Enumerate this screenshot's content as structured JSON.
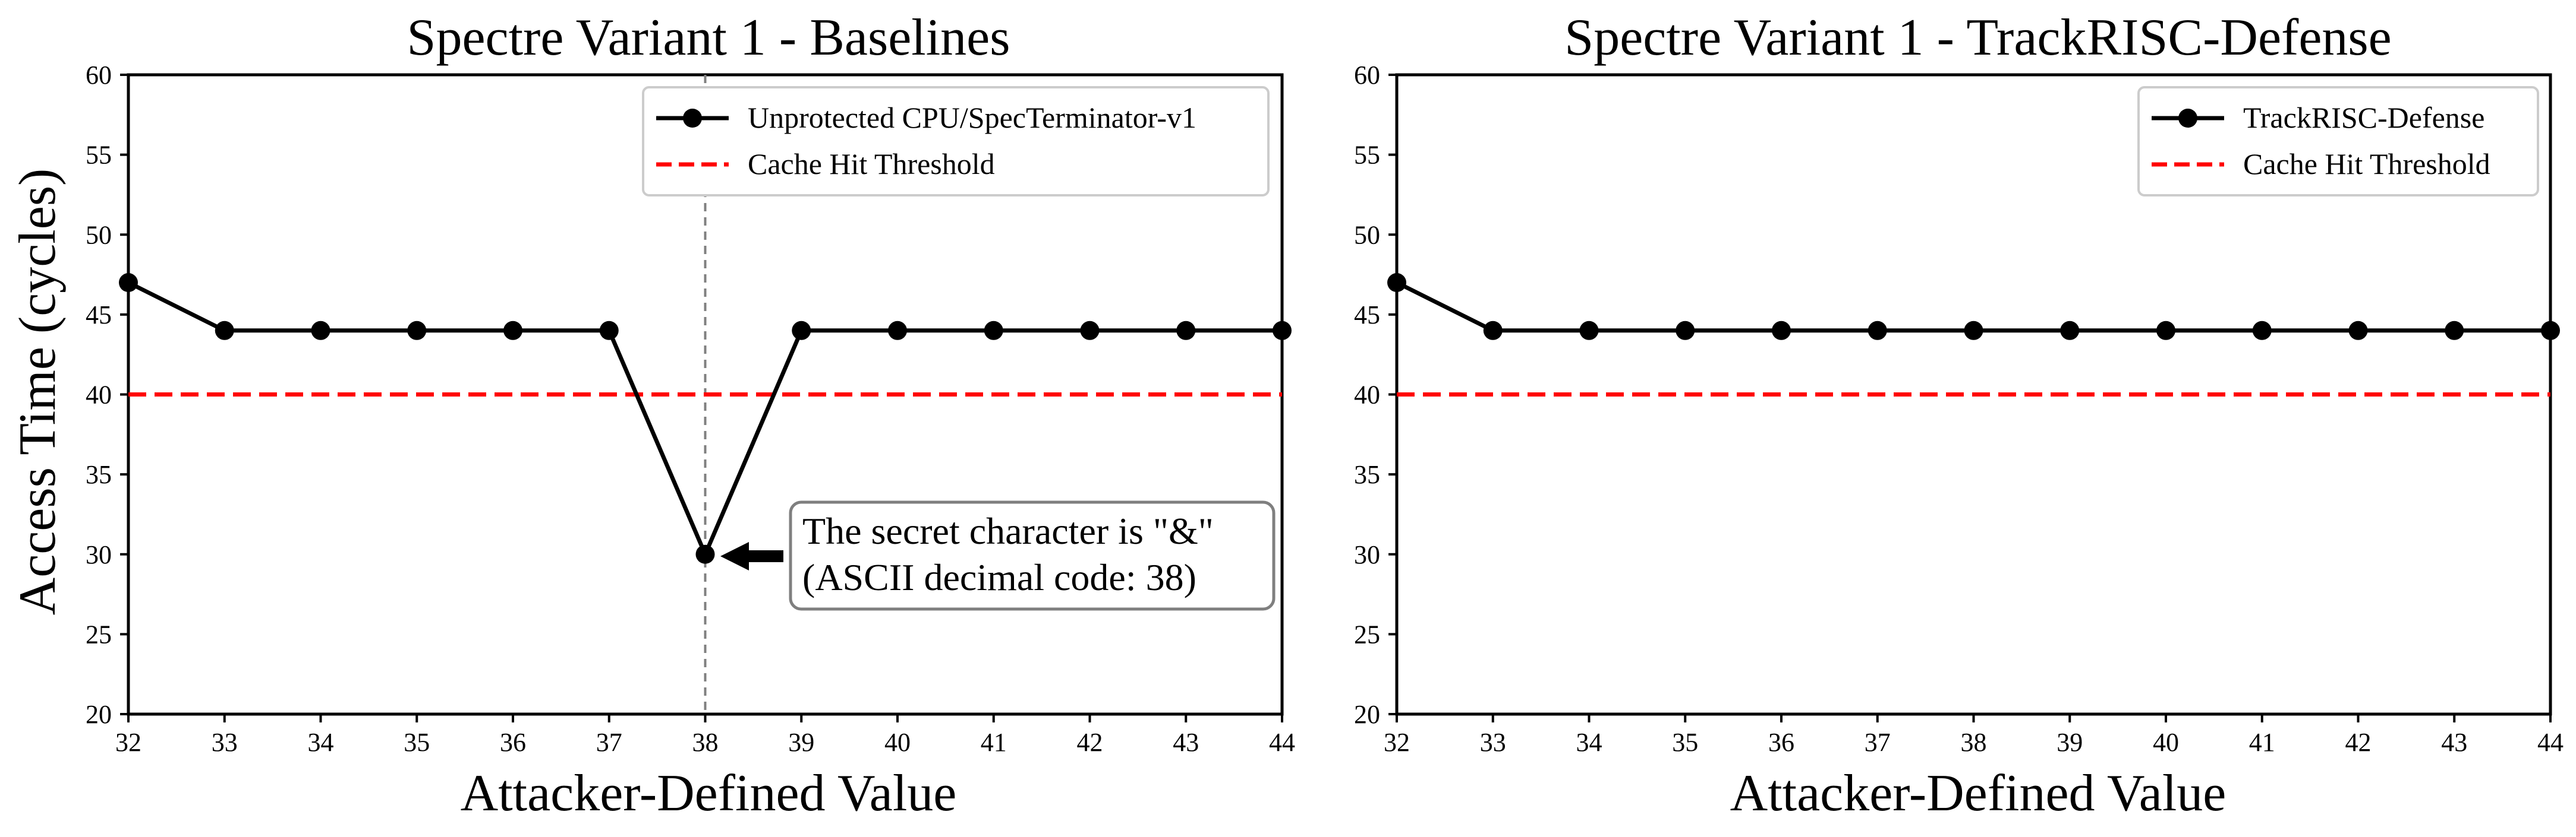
{
  "chart_data": [
    {
      "type": "line",
      "title": "Spectre Variant 1 - Baselines",
      "xlabel": "Attacker-Defined Value",
      "ylabel": "Access Time (cycles)",
      "xlim": [
        32,
        44
      ],
      "ylim": [
        20,
        60
      ],
      "x_ticks": [
        32,
        33,
        34,
        35,
        36,
        37,
        38,
        39,
        40,
        41,
        42,
        43,
        44
      ],
      "y_ticks": [
        20,
        25,
        30,
        35,
        40,
        45,
        50,
        55,
        60
      ],
      "grid": false,
      "legend_position": "top-right",
      "series": [
        {
          "name": "Unprotected CPU/SpecTerminator-v1",
          "color": "#000000",
          "marker": "circle",
          "x": [
            32,
            33,
            34,
            35,
            36,
            37,
            38,
            39,
            40,
            41,
            42,
            43,
            44
          ],
          "y": [
            47,
            44,
            44,
            44,
            44,
            44,
            30,
            44,
            44,
            44,
            44,
            44,
            44
          ]
        }
      ],
      "threshold": {
        "name": "Cache Hit Threshold",
        "y": 40,
        "color": "#ff0000",
        "style": "dashed"
      },
      "vline": {
        "x": 38,
        "color": "#808080",
        "style": "dashed"
      },
      "annotation": {
        "lines": [
          "The secret character is \"&\"",
          "(ASCII decimal code: 38)"
        ],
        "point": [
          38,
          30
        ]
      }
    },
    {
      "type": "line",
      "title": "Spectre Variant 1 - TrackRISC-Defense",
      "xlabel": "Attacker-Defined Value",
      "ylabel": "",
      "xlim": [
        32,
        44
      ],
      "ylim": [
        20,
        60
      ],
      "x_ticks": [
        32,
        33,
        34,
        35,
        36,
        37,
        38,
        39,
        40,
        41,
        42,
        43,
        44
      ],
      "y_ticks": [
        20,
        25,
        30,
        35,
        40,
        45,
        50,
        55,
        60
      ],
      "grid": false,
      "legend_position": "top-right",
      "series": [
        {
          "name": "TrackRISC-Defense",
          "color": "#000000",
          "marker": "circle",
          "x": [
            32,
            33,
            34,
            35,
            36,
            37,
            38,
            39,
            40,
            41,
            42,
            43,
            44
          ],
          "y": [
            47,
            44,
            44,
            44,
            44,
            44,
            44,
            44,
            44,
            44,
            44,
            44,
            44
          ]
        }
      ],
      "threshold": {
        "name": "Cache Hit Threshold",
        "y": 40,
        "color": "#ff0000",
        "style": "dashed"
      }
    }
  ]
}
